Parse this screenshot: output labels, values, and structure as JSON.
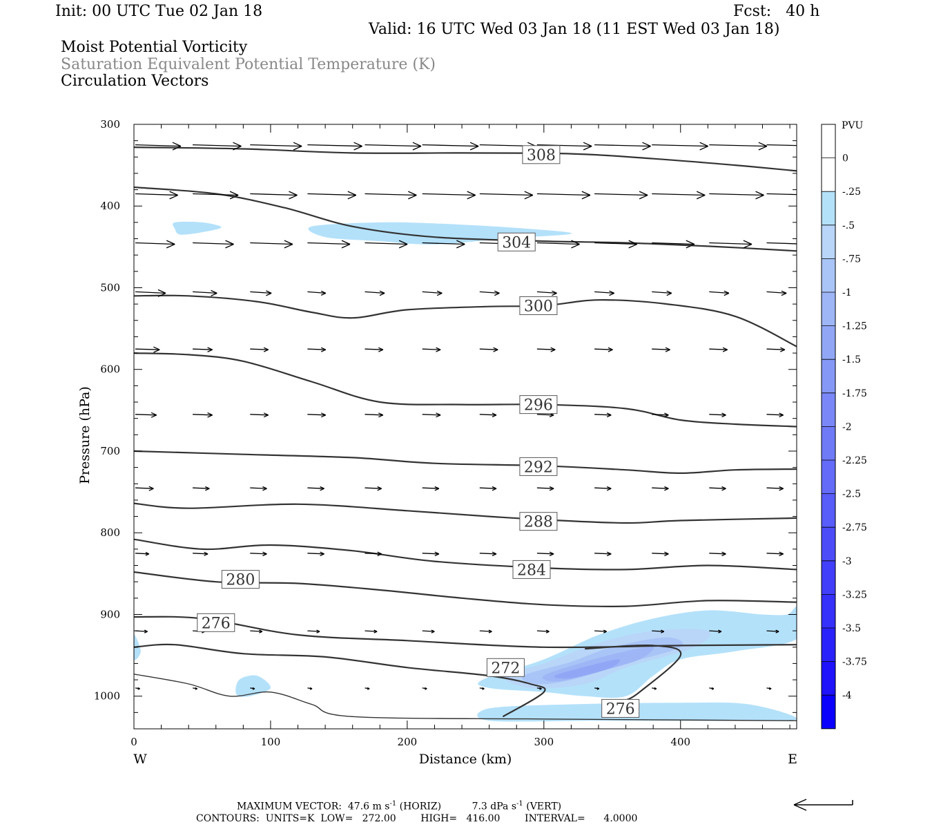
{
  "header": {
    "init": "Init: 00 UTC Tue 02 Jan 18",
    "fcst": "Fcst:   40 h",
    "valid": "Valid: 16 UTC Wed 03 Jan 18 (11 EST Wed 03 Jan 18)",
    "field1": "Moist Potential Vorticity",
    "field2": "Saturation Equivalent Potential Temperature (K)",
    "field3": "Circulation Vectors"
  },
  "footer": {
    "max_vector_label": "MAXIMUM VECTOR:",
    "horiz_value": "47.6 m s",
    "horiz_unit": "(HORIZ)",
    "vert_value": "7.3 dPa s",
    "vert_unit": "(VERT)",
    "exponent": "-1",
    "contours": "CONTOURS:  UNITS=K  LOW=   272.00        HIGH=   416.00        INTERVAL=      4.0000"
  },
  "chart_data": {
    "type": "contour cross-section",
    "xlabel": "Distance (km)",
    "ylabel": "Pressure (hPa)",
    "xlim": [
      0,
      485
    ],
    "ylim": [
      300,
      1040
    ],
    "y_scale": "linear, inverted (pressure decreasing upward)",
    "x_ticks": [
      0,
      100,
      200,
      300,
      400
    ],
    "y_ticks": [
      300,
      400,
      500,
      600,
      700,
      800,
      900,
      1000
    ],
    "x_end_labels": {
      "left": "W",
      "right": "E"
    },
    "colorbar": {
      "units": "PVU",
      "levels": [
        "0",
        "-.25",
        "-.5",
        "-.75",
        "-1",
        "-1.25",
        "-1.5",
        "-1.75",
        "-2",
        "-2.25",
        "-2.5",
        "-2.75",
        "-3",
        "-3.25",
        "-3.5",
        "-3.75",
        "-4"
      ],
      "colors": [
        "#ffffff",
        "#ffffff",
        "#b4e1fa",
        "#b9d5f8",
        "#a9c4f6",
        "#9eb6f6",
        "#91a7f6",
        "#8698f6",
        "#7a88f7",
        "#6f7af7",
        "#636bf8",
        "#585cf8",
        "#4c4df9",
        "#413ff9",
        "#3530fa",
        "#2a22fa",
        "#1e13fb",
        "#0a00fb"
      ]
    },
    "contour_labels": [
      {
        "label": "308",
        "x": 298,
        "p": 337
      },
      {
        "label": "304",
        "x": 280,
        "p": 444
      },
      {
        "label": "300",
        "x": 296,
        "p": 522
      },
      {
        "label": "296",
        "x": 296,
        "p": 643
      },
      {
        "label": "292",
        "x": 296,
        "p": 719
      },
      {
        "label": "288",
        "x": 296,
        "p": 786
      },
      {
        "label": "284",
        "x": 291,
        "p": 845
      },
      {
        "label": "280",
        "x": 78,
        "p": 857
      },
      {
        "label": "276",
        "x": 60,
        "p": 910
      },
      {
        "label": "272",
        "x": 272,
        "p": 965
      },
      {
        "label": "276",
        "x": 356,
        "p": 1015
      }
    ],
    "contours": [
      {
        "value": 308,
        "points": [
          [
            0,
            328
          ],
          [
            80,
            330
          ],
          [
            160,
            335
          ],
          [
            240,
            335
          ],
          [
            320,
            336
          ],
          [
            380,
            342
          ],
          [
            440,
            350
          ],
          [
            485,
            357
          ]
        ]
      },
      {
        "value": 304,
        "points": [
          [
            0,
            377
          ],
          [
            60,
            385
          ],
          [
            110,
            402
          ],
          [
            160,
            425
          ],
          [
            220,
            438
          ],
          [
            300,
            443
          ],
          [
            360,
            445
          ],
          [
            430,
            450
          ],
          [
            485,
            455
          ]
        ]
      },
      {
        "value": 300,
        "points": [
          [
            0,
            510
          ],
          [
            40,
            510
          ],
          [
            90,
            517
          ],
          [
            130,
            530
          ],
          [
            160,
            537
          ],
          [
            200,
            527
          ],
          [
            260,
            523
          ],
          [
            300,
            522
          ],
          [
            340,
            515
          ],
          [
            390,
            520
          ],
          [
            440,
            535
          ],
          [
            485,
            572
          ]
        ]
      },
      {
        "value": 296,
        "points": [
          [
            0,
            580
          ],
          [
            40,
            582
          ],
          [
            80,
            590
          ],
          [
            130,
            615
          ],
          [
            180,
            640
          ],
          [
            240,
            643
          ],
          [
            300,
            643
          ],
          [
            360,
            648
          ],
          [
            400,
            662
          ],
          [
            440,
            667
          ],
          [
            485,
            670
          ]
        ]
      },
      {
        "value": 292,
        "points": [
          [
            0,
            700
          ],
          [
            80,
            704
          ],
          [
            160,
            708
          ],
          [
            220,
            715
          ],
          [
            300,
            718
          ],
          [
            360,
            723
          ],
          [
            400,
            727
          ],
          [
            440,
            723
          ],
          [
            485,
            722
          ]
        ]
      },
      {
        "value": 288,
        "points": [
          [
            0,
            764
          ],
          [
            40,
            770
          ],
          [
            120,
            765
          ],
          [
            200,
            773
          ],
          [
            260,
            780
          ],
          [
            300,
            784
          ],
          [
            360,
            788
          ],
          [
            400,
            785
          ],
          [
            485,
            782
          ]
        ]
      },
      {
        "value": 284,
        "points": [
          [
            0,
            808
          ],
          [
            50,
            820
          ],
          [
            100,
            815
          ],
          [
            160,
            822
          ],
          [
            220,
            835
          ],
          [
            300,
            843
          ],
          [
            360,
            845
          ],
          [
            420,
            840
          ],
          [
            485,
            845
          ]
        ]
      },
      {
        "value": 280,
        "points": [
          [
            0,
            848
          ],
          [
            60,
            860
          ],
          [
            120,
            862
          ],
          [
            180,
            870
          ],
          [
            240,
            880
          ],
          [
            300,
            888
          ],
          [
            360,
            890
          ],
          [
            420,
            883
          ],
          [
            485,
            885
          ]
        ]
      },
      {
        "value": 276,
        "points": [
          [
            0,
            903
          ],
          [
            50,
            905
          ],
          [
            120,
            925
          ],
          [
            200,
            932
          ],
          [
            300,
            940
          ],
          [
            400,
            938
          ],
          [
            485,
            937
          ]
        ]
      },
      {
        "value": 272,
        "points": [
          [
            0,
            940
          ],
          [
            30,
            937
          ],
          [
            80,
            948
          ],
          [
            140,
            952
          ],
          [
            200,
            965
          ],
          [
            260,
            975
          ],
          [
            290,
            985
          ],
          [
            300,
            995
          ],
          [
            270,
            1025
          ]
        ]
      },
      {
        "value": 276,
        "points": [
          [
            0,
            973
          ],
          [
            40,
            985
          ],
          [
            70,
            1000
          ],
          [
            100,
            995
          ],
          [
            130,
            1010
          ],
          [
            160,
            1025
          ],
          [
            300,
            1028
          ],
          [
            485,
            1030
          ]
        ]
      },
      {
        "value": 276,
        "points": [
          [
            330,
            942
          ],
          [
            380,
            938
          ],
          [
            400,
            950
          ],
          [
            370,
            995
          ],
          [
            360,
            1005
          ]
        ]
      }
    ],
    "vectors": {
      "rows_p": [
        325,
        385,
        445,
        505,
        575,
        655,
        745,
        825,
        920,
        990
      ],
      "cols_x": [
        0,
        42,
        84,
        126,
        168,
        210,
        252,
        294,
        336,
        378,
        420,
        462
      ],
      "u": [
        [
          30,
          32,
          34,
          36,
          37,
          37,
          37,
          36,
          37,
          37,
          38,
          38
        ],
        [
          28,
          30,
          31,
          32,
          34,
          35,
          35,
          35,
          35,
          35,
          36,
          36
        ],
        [
          26,
          27,
          28,
          28,
          28,
          28,
          28,
          28,
          28,
          28,
          28,
          28
        ],
        [
          20,
          16,
          14,
          12,
          13,
          13,
          13,
          13,
          13,
          13,
          13,
          13
        ],
        [
          16,
          13,
          12,
          12,
          12,
          12,
          12,
          12,
          12,
          12,
          12,
          12
        ],
        [
          14,
          13,
          12,
          12,
          12,
          12,
          11,
          11,
          11,
          11,
          11,
          11
        ],
        [
          12,
          11,
          11,
          11,
          11,
          11,
          11,
          11,
          11,
          11,
          11,
          11
        ],
        [
          9,
          10,
          11,
          11,
          11,
          11,
          11,
          11,
          11,
          11,
          11,
          11
        ],
        [
          8,
          8,
          8,
          8,
          8,
          8,
          8,
          8,
          8,
          8,
          8,
          8
        ],
        [
          3,
          3,
          3,
          3,
          3,
          3,
          3,
          3,
          3,
          3,
          3,
          3
        ]
      ],
      "reference_arrow": "left-pointing",
      "max_horiz": 47.6,
      "max_vert": 7.3
    },
    "shaded_regions": [
      {
        "level": "-.25",
        "points": [
          [
            30,
            420
          ],
          [
            50,
            420
          ],
          [
            64,
            426
          ],
          [
            50,
            432
          ],
          [
            34,
            435
          ],
          [
            30,
            428
          ]
        ]
      },
      {
        "level": "-.25",
        "points": [
          [
            130,
            425
          ],
          [
            180,
            420
          ],
          [
            230,
            422
          ],
          [
            290,
            428
          ],
          [
            320,
            434
          ],
          [
            270,
            440
          ],
          [
            220,
            447
          ],
          [
            180,
            443
          ],
          [
            140,
            438
          ]
        ]
      },
      {
        "level": "-.25",
        "points": [
          [
            255,
            980
          ],
          [
            300,
            955
          ],
          [
            340,
            925
          ],
          [
            380,
            905
          ],
          [
            420,
            895
          ],
          [
            460,
            900
          ],
          [
            478,
            900
          ],
          [
            485,
            892
          ],
          [
            485,
            930
          ],
          [
            440,
            945
          ],
          [
            400,
            955
          ],
          [
            380,
            975
          ],
          [
            360,
            1000
          ],
          [
            330,
            1000
          ],
          [
            300,
            995
          ],
          [
            260,
            990
          ]
        ]
      },
      {
        "level": "-.25",
        "points": [
          [
            260,
            1015
          ],
          [
            320,
            1010
          ],
          [
            400,
            1008
          ],
          [
            450,
            1010
          ],
          [
            485,
            1028
          ],
          [
            440,
            1030
          ],
          [
            340,
            1030
          ],
          [
            260,
            1030
          ]
        ]
      },
      {
        "level": "-.25",
        "points": [
          [
            77,
            980
          ],
          [
            90,
            975
          ],
          [
            100,
            990
          ],
          [
            85,
            1000
          ],
          [
            75,
            998
          ]
        ]
      },
      {
        "level": "-.25",
        "points": [
          [
            0,
            925
          ],
          [
            5,
            945
          ],
          [
            0,
            955
          ]
        ]
      },
      {
        "level": "-.5",
        "points": [
          [
            270,
            975
          ],
          [
            300,
            960
          ],
          [
            340,
            935
          ],
          [
            380,
            920
          ],
          [
            420,
            920
          ],
          [
            410,
            940
          ],
          [
            360,
            965
          ],
          [
            330,
            985
          ],
          [
            290,
            990
          ]
        ]
      },
      {
        "level": "-.75",
        "points": [
          [
            285,
            975
          ],
          [
            320,
            958
          ],
          [
            350,
            940
          ],
          [
            390,
            928
          ],
          [
            400,
            940
          ],
          [
            360,
            960
          ],
          [
            320,
            980
          ],
          [
            295,
            985
          ]
        ]
      },
      {
        "level": "-1",
        "points": [
          [
            300,
            975
          ],
          [
            330,
            958
          ],
          [
            360,
            945
          ],
          [
            380,
            940
          ],
          [
            370,
            955
          ],
          [
            340,
            970
          ],
          [
            310,
            982
          ]
        ]
      },
      {
        "level": "-1.25",
        "points": [
          [
            308,
            975
          ],
          [
            335,
            962
          ],
          [
            355,
            955
          ],
          [
            348,
            966
          ],
          [
            320,
            978
          ]
        ]
      }
    ]
  }
}
